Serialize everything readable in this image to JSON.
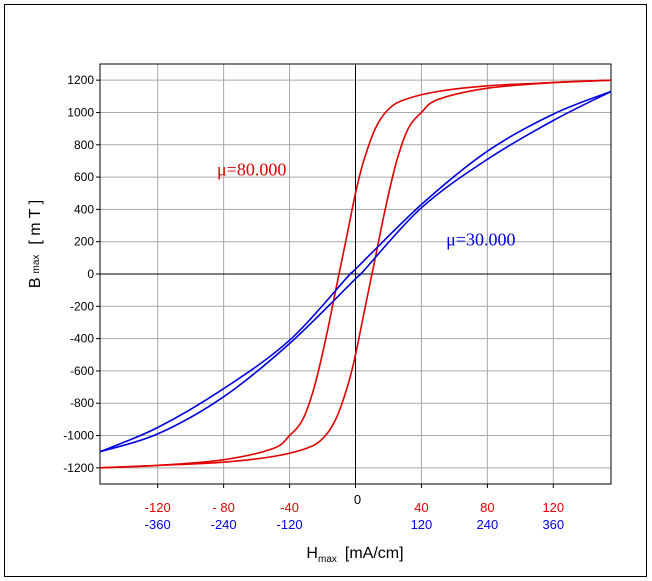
{
  "chart_data": {
    "type": "line",
    "title": "",
    "ylabel": {
      "main": "B",
      "sub": "max",
      "unit": "[ m T ]"
    },
    "xlabel": {
      "main": "H",
      "sub": "max",
      "unit": "[mA/cm]"
    },
    "xlim": [
      -155,
      155
    ],
    "ylim": [
      -1300,
      1300
    ],
    "grid": true,
    "y_ticks": [
      1200,
      1000,
      800,
      600,
      400,
      200,
      0,
      -200,
      -400,
      -600,
      -800,
      -1000,
      -1200
    ],
    "y_tick_labels": [
      "1200",
      "1000",
      "800",
      "600",
      "400",
      "200",
      "0",
      "-200",
      "-400",
      "-600",
      "-800",
      "-1000",
      "-1200"
    ],
    "x_ticks_red": [
      {
        "x": -120,
        "label": "-120"
      },
      {
        "x": -80,
        "label": "- 80"
      },
      {
        "x": -40,
        "label": "-40"
      },
      {
        "x": 40,
        "label": "40"
      },
      {
        "x": 80,
        "label": "80"
      },
      {
        "x": 120,
        "label": "120"
      }
    ],
    "x_ticks_blue": [
      {
        "x": -120,
        "label": "-360"
      },
      {
        "x": -80,
        "label": "-240"
      },
      {
        "x": -40,
        "label": "-120"
      },
      {
        "x": 40,
        "label": "120"
      },
      {
        "x": 80,
        "label": "240"
      },
      {
        "x": 120,
        "label": "360"
      }
    ],
    "x_tick_zero": "0",
    "series": [
      {
        "name": "μ=80.000",
        "color": "#e00000",
        "upper": [
          [
            -155,
            -1200
          ],
          [
            -120,
            -1185
          ],
          [
            -80,
            -1150
          ],
          [
            -50,
            -1080
          ],
          [
            -40,
            -1000
          ],
          [
            -32,
            -900
          ],
          [
            -25,
            -700
          ],
          [
            -18,
            -400
          ],
          [
            -12,
            -100
          ],
          [
            -5,
            250
          ],
          [
            0,
            500
          ],
          [
            5,
            700
          ],
          [
            12,
            900
          ],
          [
            20,
            1020
          ],
          [
            30,
            1080
          ],
          [
            50,
            1130
          ],
          [
            80,
            1165
          ],
          [
            120,
            1185
          ],
          [
            155,
            1200
          ]
        ],
        "lower": [
          [
            -155,
            -1200
          ],
          [
            -120,
            -1185
          ],
          [
            -80,
            -1165
          ],
          [
            -50,
            -1130
          ],
          [
            -30,
            -1080
          ],
          [
            -20,
            -1020
          ],
          [
            -12,
            -900
          ],
          [
            -5,
            -700
          ],
          [
            0,
            -500
          ],
          [
            5,
            -250
          ],
          [
            12,
            100
          ],
          [
            18,
            400
          ],
          [
            25,
            700
          ],
          [
            32,
            900
          ],
          [
            40,
            1000
          ],
          [
            50,
            1080
          ],
          [
            80,
            1150
          ],
          [
            120,
            1185
          ],
          [
            155,
            1200
          ]
        ]
      },
      {
        "name": "μ=30.000",
        "color": "#0000e0",
        "upper": [
          [
            -155,
            -1100
          ],
          [
            -120,
            -950
          ],
          [
            -80,
            -710
          ],
          [
            -40,
            -410
          ],
          [
            -5,
            -20
          ],
          [
            0,
            30
          ],
          [
            40,
            430
          ],
          [
            80,
            760
          ],
          [
            120,
            990
          ],
          [
            155,
            1130
          ]
        ],
        "lower": [
          [
            -155,
            -1100
          ],
          [
            -120,
            -990
          ],
          [
            -80,
            -760
          ],
          [
            -40,
            -430
          ],
          [
            0,
            -30
          ],
          [
            5,
            20
          ],
          [
            40,
            410
          ],
          [
            80,
            710
          ],
          [
            120,
            950
          ],
          [
            155,
            1130
          ]
        ]
      }
    ],
    "annotations": [
      {
        "text": "μ=80.000",
        "color": "#e00000",
        "x": -84,
        "y": 610
      },
      {
        "text": "μ=30.000",
        "color": "#0000e0",
        "x": 55,
        "y": 175
      }
    ]
  }
}
